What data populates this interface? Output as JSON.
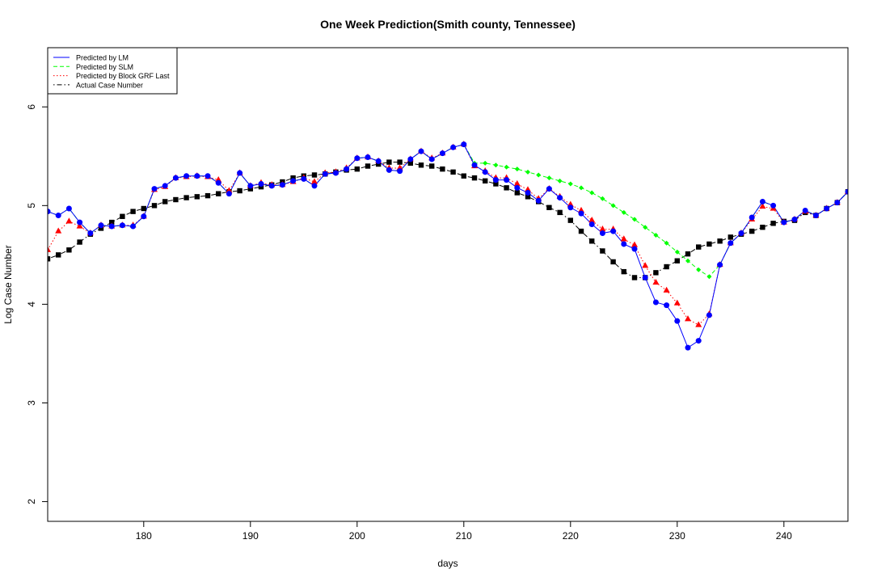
{
  "chart_data": {
    "type": "line",
    "title": "One Week Prediction(Smith county, Tennessee)",
    "xlabel": "days",
    "ylabel": "Log Case Number",
    "xlim": [
      171,
      246
    ],
    "ylim": [
      1.8,
      6.6
    ],
    "x_ticks": [
      180,
      190,
      200,
      210,
      220,
      230,
      240
    ],
    "y_ticks": [
      2,
      3,
      4,
      5,
      6
    ],
    "grid": false,
    "legend_position": "top-left",
    "series": [
      {
        "name": "Predicted by LM",
        "line_color": "#0000ff",
        "line_style": "solid",
        "marker": "circle",
        "marker_color": "#0000ff",
        "x": [
          171,
          172,
          173,
          174,
          175,
          176,
          177,
          178,
          179,
          180,
          181,
          182,
          183,
          184,
          185,
          186,
          187,
          188,
          189,
          190,
          191,
          192,
          193,
          194,
          195,
          196,
          197,
          198,
          199,
          200,
          201,
          202,
          203,
          204,
          205,
          206,
          207,
          208,
          209,
          210,
          211,
          212,
          213,
          214,
          215,
          216,
          217,
          218,
          219,
          220,
          221,
          222,
          223,
          224,
          225,
          226,
          227,
          228,
          229,
          230,
          231,
          232,
          233,
          234,
          235,
          236,
          237,
          238,
          239,
          240,
          241,
          242,
          243,
          244,
          245,
          246
        ],
        "values": [
          4.94,
          4.9,
          4.97,
          4.83,
          4.72,
          4.8,
          4.79,
          4.8,
          4.79,
          4.89,
          5.17,
          5.2,
          5.28,
          5.3,
          5.3,
          5.3,
          5.23,
          5.12,
          5.33,
          5.2,
          5.22,
          5.2,
          5.21,
          5.25,
          5.27,
          5.2,
          5.32,
          5.33,
          5.37,
          5.48,
          5.49,
          5.45,
          5.36,
          5.35,
          5.47,
          5.55,
          5.47,
          5.53,
          5.59,
          5.62,
          5.41,
          5.34,
          5.26,
          5.26,
          5.18,
          5.13,
          5.05,
          5.17,
          5.08,
          4.98,
          4.92,
          4.81,
          4.72,
          4.74,
          4.61,
          4.56,
          4.27,
          4.02,
          3.99,
          3.83,
          3.56,
          3.63,
          3.89,
          4.4,
          4.62,
          4.72,
          4.88,
          5.04,
          5.0,
          4.83,
          4.86,
          4.95,
          4.9,
          4.97,
          5.03,
          5.14
        ]
      },
      {
        "name": "Predicted by SLM",
        "line_color": "#00ff00",
        "line_style": "dashed",
        "marker": "diamond",
        "marker_color": "#00ff00",
        "x": [
          171,
          172,
          173,
          174,
          175,
          176,
          177,
          178,
          179,
          180,
          181,
          182,
          183,
          184,
          185,
          186,
          187,
          188,
          189,
          190,
          191,
          192,
          193,
          194,
          195,
          196,
          197,
          198,
          199,
          200,
          201,
          202,
          203,
          204,
          205,
          206,
          207,
          208,
          209,
          210,
          211,
          212,
          213,
          214,
          215,
          216,
          217,
          218,
          219,
          220,
          221,
          222,
          223,
          224,
          225,
          226,
          227,
          228,
          229,
          230,
          231,
          232,
          233,
          234,
          235,
          236,
          237,
          238,
          239,
          240,
          241,
          242,
          243,
          244,
          245,
          246
        ],
        "values": [
          4.94,
          4.9,
          4.97,
          4.83,
          4.72,
          4.8,
          4.79,
          4.8,
          4.79,
          4.89,
          5.17,
          5.2,
          5.28,
          5.3,
          5.3,
          5.3,
          5.23,
          5.12,
          5.33,
          5.2,
          5.22,
          5.2,
          5.21,
          5.25,
          5.27,
          5.2,
          5.32,
          5.33,
          5.37,
          5.48,
          5.49,
          5.45,
          5.36,
          5.35,
          5.47,
          5.55,
          5.47,
          5.53,
          5.59,
          5.62,
          5.43,
          5.43,
          5.41,
          5.39,
          5.37,
          5.34,
          5.31,
          5.28,
          5.25,
          5.22,
          5.18,
          5.13,
          5.07,
          5.0,
          4.93,
          4.86,
          4.78,
          4.7,
          4.62,
          4.53,
          4.44,
          4.35,
          4.28,
          4.4,
          4.62,
          4.72,
          4.88,
          5.04,
          5.0,
          4.83,
          4.86,
          4.95,
          4.9,
          4.97,
          5.03,
          5.14
        ]
      },
      {
        "name": "Predicted by Block GRF Last",
        "line_color": "#ff0000",
        "line_style": "dotted",
        "marker": "triangle",
        "marker_color": "#ff0000",
        "x": [
          171,
          172,
          173,
          174,
          175,
          176,
          177,
          178,
          179,
          180,
          181,
          182,
          183,
          184,
          185,
          186,
          187,
          188,
          189,
          190,
          191,
          192,
          193,
          194,
          195,
          196,
          197,
          198,
          199,
          200,
          201,
          202,
          203,
          204,
          205,
          206,
          207,
          208,
          209,
          210,
          211,
          212,
          213,
          214,
          215,
          216,
          217,
          218,
          219,
          220,
          221,
          222,
          223,
          224,
          225,
          226,
          227,
          228,
          229,
          230,
          231,
          232,
          233,
          234,
          235,
          236,
          237,
          238,
          239,
          240,
          241,
          242,
          243,
          244,
          245,
          246
        ],
        "values": [
          4.55,
          4.74,
          4.84,
          4.79,
          4.72,
          4.8,
          4.79,
          4.8,
          4.8,
          4.89,
          5.16,
          5.19,
          5.28,
          5.29,
          5.3,
          5.29,
          5.26,
          5.15,
          5.33,
          5.2,
          5.23,
          5.21,
          5.21,
          5.24,
          5.28,
          5.24,
          5.33,
          5.34,
          5.38,
          5.48,
          5.49,
          5.45,
          5.38,
          5.38,
          5.47,
          5.55,
          5.48,
          5.53,
          5.59,
          5.62,
          5.4,
          5.35,
          5.28,
          5.28,
          5.22,
          5.16,
          5.07,
          5.17,
          5.09,
          5.01,
          4.95,
          4.85,
          4.76,
          4.76,
          4.66,
          4.6,
          4.39,
          4.22,
          4.14,
          4.01,
          3.85,
          3.79,
          3.9,
          4.4,
          4.62,
          4.72,
          4.86,
          4.99,
          4.97,
          4.83,
          4.86,
          4.94,
          4.9,
          4.97,
          5.03,
          5.14
        ]
      },
      {
        "name": "Actual Case Number",
        "line_color": "#000000",
        "line_style": "dotdash",
        "marker": "square",
        "marker_color": "#000000",
        "x": [
          171,
          172,
          173,
          174,
          175,
          176,
          177,
          178,
          179,
          180,
          181,
          182,
          183,
          184,
          185,
          186,
          187,
          188,
          189,
          190,
          191,
          192,
          193,
          194,
          195,
          196,
          197,
          198,
          199,
          200,
          201,
          202,
          203,
          204,
          205,
          206,
          207,
          208,
          209,
          210,
          211,
          212,
          213,
          214,
          215,
          216,
          217,
          218,
          219,
          220,
          221,
          222,
          223,
          224,
          225,
          226,
          227,
          228,
          229,
          230,
          231,
          232,
          233,
          234,
          235,
          236,
          237,
          238,
          239,
          240,
          241,
          242,
          243,
          244,
          245,
          246
        ],
        "values": [
          4.46,
          4.5,
          4.55,
          4.63,
          4.71,
          4.77,
          4.83,
          4.89,
          4.94,
          4.97,
          5.0,
          5.04,
          5.06,
          5.08,
          5.09,
          5.1,
          5.12,
          5.14,
          5.15,
          5.17,
          5.19,
          5.21,
          5.24,
          5.28,
          5.3,
          5.31,
          5.32,
          5.34,
          5.36,
          5.37,
          5.4,
          5.42,
          5.44,
          5.44,
          5.43,
          5.41,
          5.4,
          5.37,
          5.34,
          5.3,
          5.28,
          5.25,
          5.22,
          5.18,
          5.13,
          5.09,
          5.04,
          4.98,
          4.93,
          4.85,
          4.74,
          4.64,
          4.54,
          4.43,
          4.33,
          4.27,
          4.27,
          4.32,
          4.38,
          4.44,
          4.51,
          4.58,
          4.61,
          4.64,
          4.68,
          4.71,
          4.74,
          4.78,
          4.82,
          4.84,
          4.85,
          4.93,
          4.9,
          4.97,
          5.03,
          5.14
        ]
      }
    ]
  }
}
